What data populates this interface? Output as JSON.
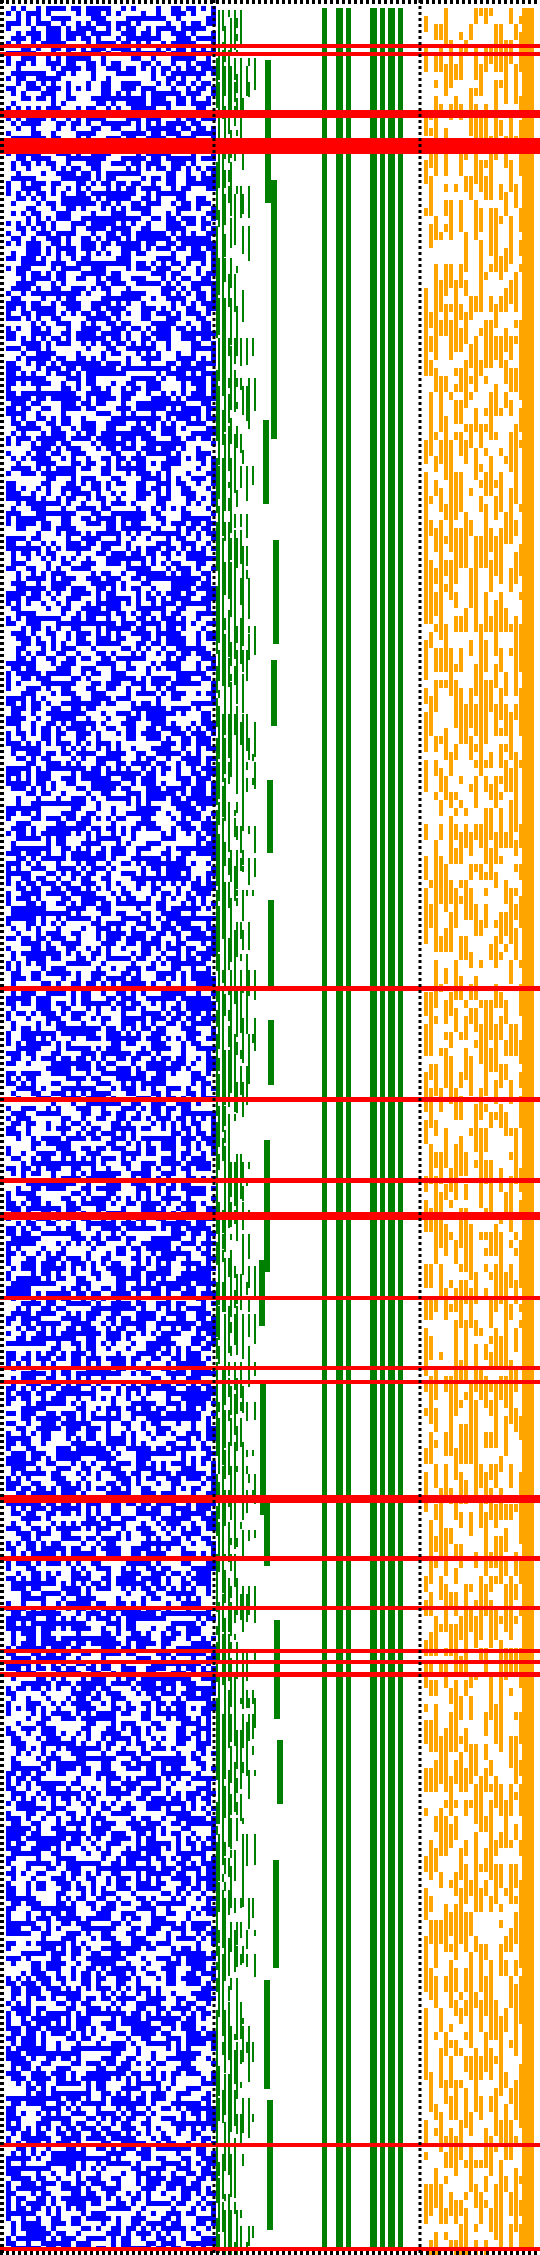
{
  "colors": {
    "background": "#ffffff",
    "left_panel_pixels": "#0000ff",
    "tree_lines": "#008000",
    "right_panel_pixels": "#ffa500",
    "highlight_rows": "#ff0000",
    "dotted_borders": "#000000"
  },
  "description_text": ""
}
